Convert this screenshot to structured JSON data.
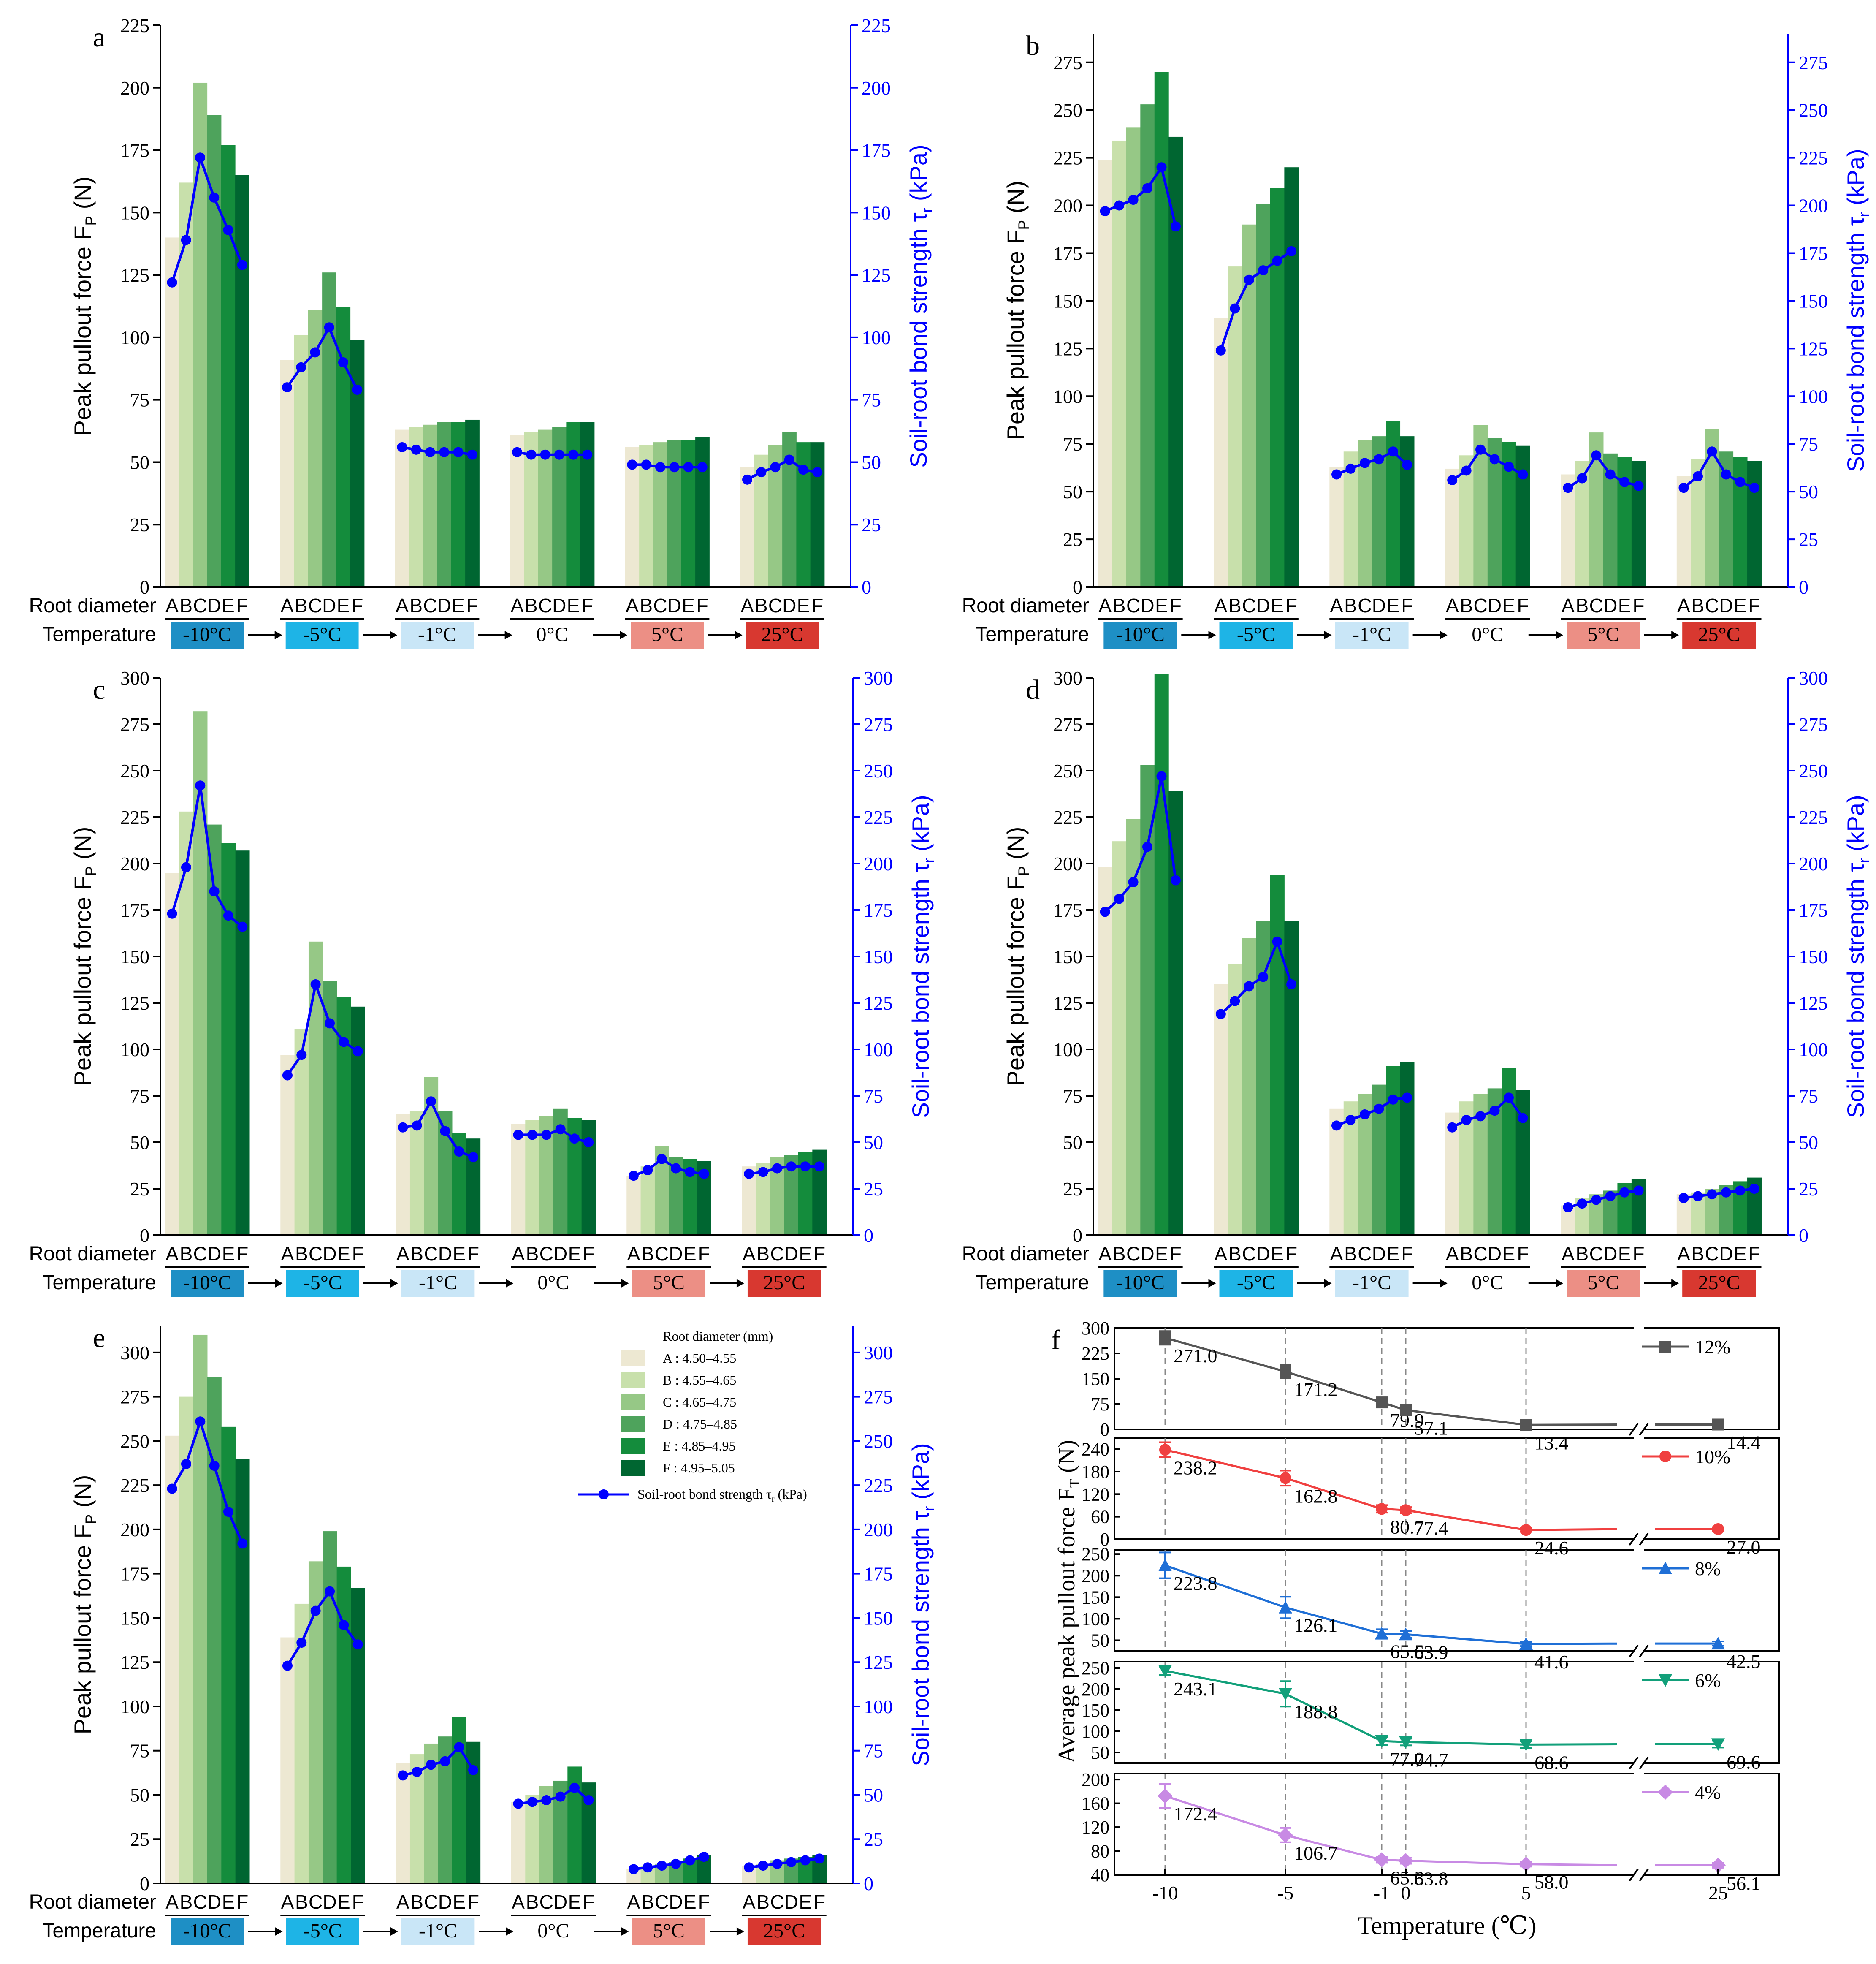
{
  "figure": {
    "left_axis_symbol": "F",
    "left_axis_subscript": "P",
    "right_axis_symbol": "τ",
    "right_axis_subscript": "r"
  },
  "colors": {
    "bars": [
      "#ede8d2",
      "#c8e0ab",
      "#96c886",
      "#4ea35c",
      "#148c3c",
      "#006631"
    ],
    "line": "#0000ff",
    "temps": [
      "#1e8fc5",
      "#1eb4e6",
      "#c9e6f7",
      "#ffffff",
      "#ec8f85",
      "#d83830"
    ],
    "series": [
      "#555555",
      "#f04040",
      "#1f6fd6",
      "#12a07a",
      "#c88ae4"
    ]
  },
  "legend": {
    "title": "Root diameter (mm)",
    "items": [
      "A : 4.50–4.55",
      "B : 4.55–4.65",
      "C : 4.65–4.75",
      "D : 4.75–4.85",
      "E : 4.85–4.95",
      "F : 4.95–5.05"
    ],
    "line_label": "Soil-root bond strength τr (kPa)"
  },
  "chart_data": [
    {
      "panel": "a",
      "type": "bar",
      "ylabel": "Peak pullout force FP (N)",
      "y2label": "Soil-root bond strength τr (kPa)",
      "ylim": [
        0,
        225
      ],
      "yticks": [
        0,
        25,
        50,
        75,
        100,
        125,
        150,
        175,
        200,
        225
      ],
      "y2lim": [
        0,
        225
      ],
      "y2ticks": [
        0,
        25,
        50,
        75,
        100,
        125,
        150,
        175,
        200,
        225
      ],
      "row1_label": "Root diameter",
      "row2_label": "Temperature",
      "categories": [
        "A",
        "B",
        "C",
        "D",
        "E",
        "F"
      ],
      "temperatures": [
        "-10°C",
        "-5°C",
        "-1°C",
        "0°C",
        "5°C",
        "25°C"
      ],
      "bars": [
        [
          140,
          162,
          202,
          189,
          177,
          165
        ],
        [
          91,
          101,
          111,
          126,
          112,
          99
        ],
        [
          63,
          64,
          65,
          66,
          66,
          67
        ],
        [
          61,
          62,
          63,
          64,
          66,
          66
        ],
        [
          56,
          57,
          58,
          59,
          59,
          60
        ],
        [
          48,
          53,
          57,
          62,
          58,
          58
        ]
      ],
      "line": [
        [
          122,
          139,
          172,
          156,
          143,
          129
        ],
        [
          80,
          88,
          94,
          104,
          90,
          79
        ],
        [
          56,
          55,
          54,
          54,
          54,
          53
        ],
        [
          54,
          53,
          53,
          53,
          53,
          53
        ],
        [
          49,
          49,
          48,
          48,
          48,
          48
        ],
        [
          43,
          46,
          48,
          51,
          47,
          46
        ]
      ]
    },
    {
      "panel": "b",
      "type": "bar",
      "ylabel": "Peak pullout force FP (N)",
      "y2label": "Soil-root bond strength τr (kPa)",
      "ylim": [
        0,
        290
      ],
      "yticks": [
        0,
        25,
        50,
        75,
        100,
        125,
        150,
        175,
        200,
        225,
        250,
        275
      ],
      "y2lim": [
        0,
        290
      ],
      "y2ticks": [
        0,
        25,
        50,
        75,
        100,
        125,
        150,
        175,
        200,
        225,
        250,
        275
      ],
      "row1_label": "Root diameter",
      "row2_label": "Temperature",
      "categories": [
        "A",
        "B",
        "C",
        "D",
        "E",
        "F"
      ],
      "temperatures": [
        "-10°C",
        "-5°C",
        "-1°C",
        "0°C",
        "5°C",
        "25°C"
      ],
      "bars": [
        [
          224,
          234,
          241,
          253,
          270,
          236
        ],
        [
          141,
          168,
          190,
          201,
          209,
          220
        ],
        [
          63,
          71,
          77,
          79,
          87,
          79
        ],
        [
          62,
          69,
          85,
          78,
          76,
          74
        ],
        [
          59,
          66,
          81,
          70,
          68,
          66
        ],
        [
          58,
          67,
          83,
          71,
          68,
          66
        ]
      ],
      "line": [
        [
          197,
          200,
          203,
          209,
          220,
          189
        ],
        [
          124,
          146,
          161,
          166,
          171,
          176
        ],
        [
          59,
          62,
          65,
          67,
          71,
          64
        ],
        [
          56,
          61,
          72,
          67,
          63,
          59
        ],
        [
          52,
          57,
          69,
          59,
          55,
          53
        ],
        [
          52,
          58,
          71,
          59,
          55,
          52
        ]
      ]
    },
    {
      "panel": "c",
      "type": "bar",
      "ylabel": "Peak pullout force FP (N)",
      "y2label": "Soil-root bond strength τr (kPa)",
      "ylim": [
        0,
        300
      ],
      "yticks": [
        0,
        25,
        50,
        75,
        100,
        125,
        150,
        175,
        200,
        225,
        250,
        275,
        300
      ],
      "y2lim": [
        0,
        300
      ],
      "y2ticks": [
        0,
        25,
        50,
        75,
        100,
        125,
        150,
        175,
        200,
        225,
        250,
        275,
        300
      ],
      "row1_label": "Root diameter",
      "row2_label": "Temperature",
      "categories": [
        "A",
        "B",
        "C",
        "D",
        "E",
        "F"
      ],
      "temperatures": [
        "-10°C",
        "-5°C",
        "-1°C",
        "0°C",
        "5°C",
        "25°C"
      ],
      "bars": [
        [
          195,
          228,
          282,
          221,
          211,
          207
        ],
        [
          97,
          111,
          158,
          137,
          128,
          123
        ],
        [
          65,
          67,
          85,
          67,
          55,
          52
        ],
        [
          60,
          62,
          64,
          68,
          63,
          62
        ],
        [
          32,
          37,
          48,
          42,
          41,
          40
        ],
        [
          37,
          39,
          42,
          43,
          45,
          46
        ]
      ],
      "line": [
        [
          173,
          198,
          242,
          185,
          172,
          166
        ],
        [
          86,
          97,
          135,
          114,
          104,
          99
        ],
        [
          58,
          59,
          72,
          56,
          45,
          42
        ],
        [
          54,
          54,
          54,
          57,
          52,
          50
        ],
        [
          32,
          35,
          41,
          36,
          34,
          33
        ],
        [
          33,
          34,
          36,
          37,
          37,
          37
        ]
      ]
    },
    {
      "panel": "d",
      "type": "bar",
      "ylabel": "Peak pullout force FP (N)",
      "y2label": "Soil-root bond strength τr (kPa)",
      "ylim": [
        0,
        300
      ],
      "yticks": [
        0,
        25,
        50,
        75,
        100,
        125,
        150,
        175,
        200,
        225,
        250,
        275,
        300
      ],
      "y2lim": [
        0,
        300
      ],
      "y2ticks": [
        0,
        25,
        50,
        75,
        100,
        125,
        150,
        175,
        200,
        225,
        250,
        275,
        300
      ],
      "row1_label": "Root diameter",
      "row2_label": "Temperature",
      "categories": [
        "A",
        "B",
        "C",
        "D",
        "E",
        "F"
      ],
      "temperatures": [
        "-10°C",
        "-5°C",
        "-1°C",
        "0°C",
        "5°C",
        "25°C"
      ],
      "bars": [
        [
          198,
          212,
          224,
          253,
          302,
          239
        ],
        [
          135,
          146,
          160,
          169,
          194,
          169
        ],
        [
          68,
          72,
          76,
          81,
          91,
          93
        ],
        [
          66,
          72,
          76,
          79,
          90,
          78
        ],
        [
          16,
          20,
          22,
          24,
          28,
          30
        ],
        [
          22,
          23,
          25,
          27,
          29,
          31
        ]
      ],
      "line": [
        [
          174,
          181,
          190,
          209,
          247,
          191
        ],
        [
          119,
          126,
          134,
          139,
          158,
          135
        ],
        [
          59,
          62,
          65,
          68,
          73,
          74
        ],
        [
          58,
          62,
          64,
          67,
          74,
          63
        ],
        [
          15,
          17,
          19,
          21,
          23,
          24
        ],
        [
          20,
          21,
          22,
          23,
          24,
          25
        ]
      ]
    },
    {
      "panel": "e",
      "type": "bar",
      "ylabel": "Peak pullout force FP (N)",
      "y2label": "Soil-root bond strength τr (kPa)",
      "ylim": [
        0,
        315
      ],
      "yticks": [
        0,
        25,
        50,
        75,
        100,
        125,
        150,
        175,
        200,
        225,
        250,
        275,
        300
      ],
      "y2lim": [
        0,
        315
      ],
      "y2ticks": [
        0,
        25,
        50,
        75,
        100,
        125,
        150,
        175,
        200,
        225,
        250,
        275,
        300
      ],
      "row1_label": "Root diameter",
      "row2_label": "Temperature",
      "categories": [
        "A",
        "B",
        "C",
        "D",
        "E",
        "F"
      ],
      "temperatures": [
        "-10°C",
        "-5°C",
        "-1°C",
        "0°C",
        "5°C",
        "25°C"
      ],
      "bars": [
        [
          253,
          275,
          310,
          286,
          258,
          240
        ],
        [
          139,
          158,
          182,
          199,
          179,
          167
        ],
        [
          68,
          73,
          79,
          83,
          94,
          80
        ],
        [
          46,
          50,
          55,
          58,
          66,
          57
        ],
        [
          8,
          10,
          11,
          12,
          14,
          16
        ],
        [
          10,
          11,
          13,
          14,
          15,
          16
        ]
      ],
      "line": [
        [
          223,
          237,
          261,
          236,
          210,
          192
        ],
        [
          123,
          136,
          154,
          165,
          146,
          135
        ],
        [
          61,
          63,
          67,
          69,
          77,
          64
        ],
        [
          45,
          46,
          47,
          49,
          54,
          47
        ],
        [
          8,
          9,
          10,
          11,
          13,
          15
        ],
        [
          9,
          10,
          11,
          12,
          13,
          14
        ]
      ]
    },
    {
      "panel": "f",
      "type": "line",
      "xlabel": "Temperature (℃)",
      "ylabel": "Average peak pullout force FT (N)",
      "x": [
        -10,
        -5,
        -1,
        0,
        5,
        25
      ],
      "xtick_labels": [
        "-10",
        "-5",
        "-1",
        "0",
        "5",
        "25"
      ],
      "series": [
        {
          "name": "12%",
          "marker": "square",
          "values": [
            271.0,
            171.2,
            79.9,
            57.1,
            13.4,
            14.4
          ],
          "labels": [
            "271.0",
            "171.2",
            "79.9",
            "57.1",
            "13.4",
            "14.4"
          ],
          "err": [
            20,
            20,
            10,
            8,
            5,
            5
          ],
          "ylim": [
            0,
            300
          ],
          "yticks": [
            0,
            75,
            150,
            225,
            300
          ]
        },
        {
          "name": "10%",
          "marker": "circle",
          "values": [
            238.2,
            162.8,
            80.7,
            77.4,
            24.6,
            27.0
          ],
          "labels": [
            "238.2",
            "162.8",
            "80.7",
            "77.4",
            "24.6",
            "27.0"
          ],
          "err": [
            20,
            20,
            10,
            8,
            5,
            5
          ],
          "ylim": [
            0,
            270
          ],
          "yticks": [
            0,
            60,
            120,
            180,
            240
          ]
        },
        {
          "name": "8%",
          "marker": "triangle-up",
          "values": [
            223.8,
            126.1,
            65.5,
            63.9,
            41.6,
            42.5
          ],
          "labels": [
            "223.8",
            "126.1",
            "65.5",
            "63.9",
            "41.6",
            "42.5"
          ],
          "err": [
            30,
            25,
            10,
            8,
            5,
            5
          ],
          "ylim": [
            25,
            260
          ],
          "yticks": [
            50,
            100,
            150,
            200,
            250
          ]
        },
        {
          "name": "6%",
          "marker": "triangle-down",
          "values": [
            243.1,
            188.8,
            77.0,
            74.7,
            68.6,
            69.6
          ],
          "labels": [
            "243.1",
            "188.8",
            "77.0",
            "74.7",
            "68.6",
            "69.6"
          ],
          "err": [
            10,
            30,
            10,
            8,
            8,
            8
          ],
          "ylim": [
            25,
            265
          ],
          "yticks": [
            50,
            100,
            150,
            200,
            250
          ]
        },
        {
          "name": "4%",
          "marker": "diamond",
          "values": [
            172.4,
            106.7,
            65.3,
            63.8,
            58.0,
            56.1
          ],
          "labels": [
            "172.4",
            "106.7",
            "65.3",
            "63.8",
            "58.0",
            "56.1"
          ],
          "err": [
            20,
            12,
            5,
            5,
            4,
            4
          ],
          "ylim": [
            40,
            210
          ],
          "yticks": [
            40,
            80,
            120,
            160,
            200
          ]
        }
      ]
    }
  ]
}
